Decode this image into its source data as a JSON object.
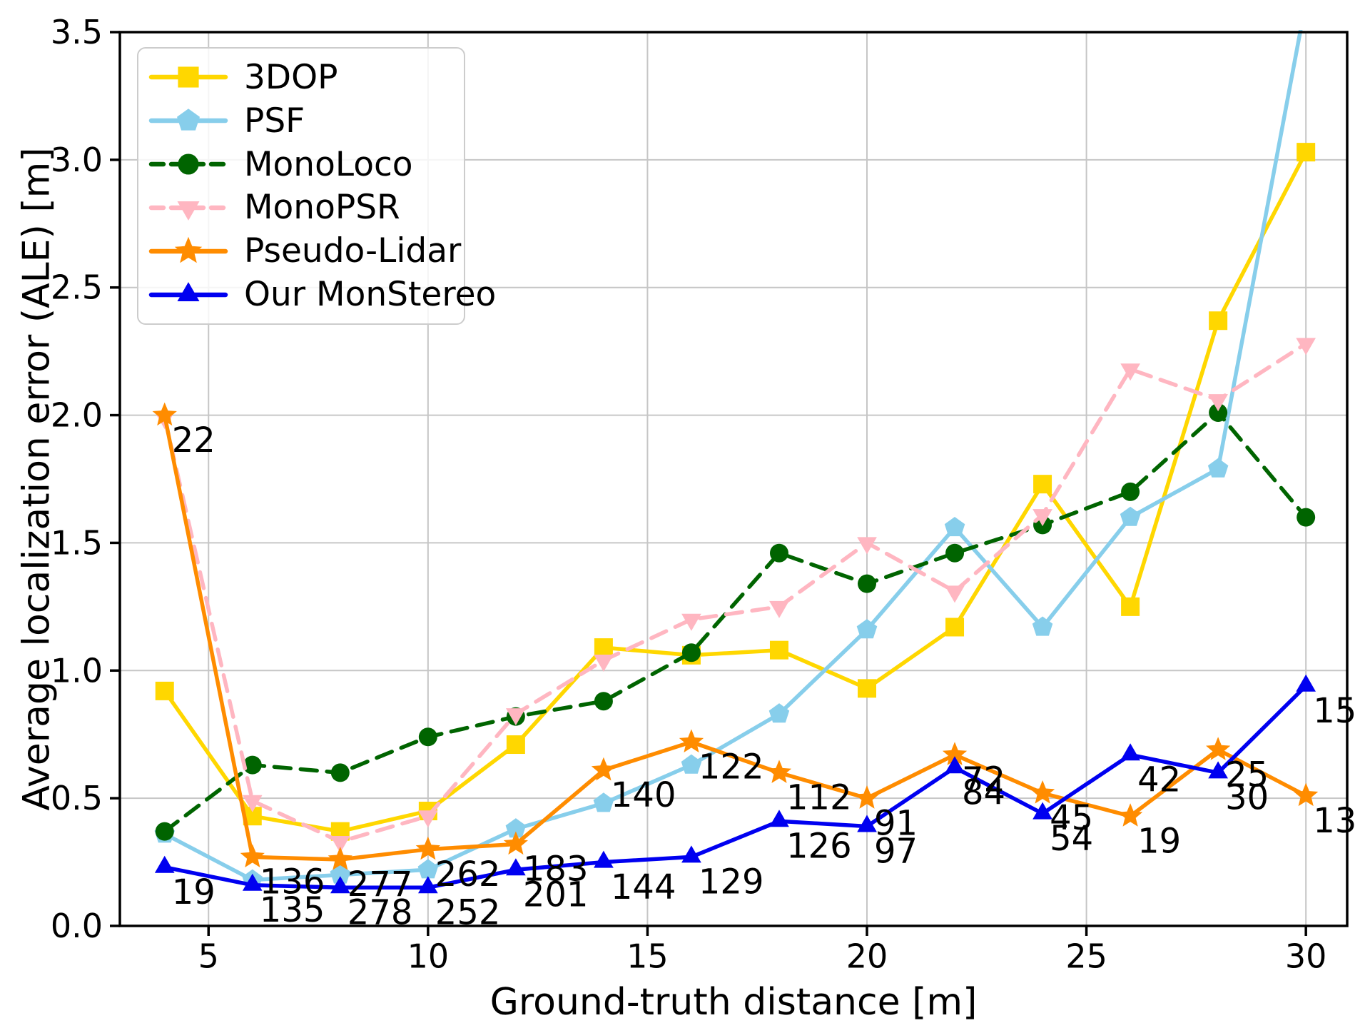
{
  "chart_data": {
    "type": "line",
    "title": "",
    "xlabel": "Ground-truth distance [m]",
    "ylabel": "Average localization error (ALE) [m]",
    "xlim": [
      2.98,
      30.94
    ],
    "ylim": [
      0,
      3.5
    ],
    "grid": true,
    "legend_position": "upper-left",
    "colors": {
      "grid": "#c6c6c6",
      "spine": "#000000",
      "text": "#000000",
      "legend_border": "#cccccc"
    },
    "xticks": [
      {
        "value": 5,
        "label": "5"
      },
      {
        "value": 10,
        "label": "10"
      },
      {
        "value": 15,
        "label": "15"
      },
      {
        "value": 20,
        "label": "20"
      },
      {
        "value": 25,
        "label": "25"
      },
      {
        "value": 30,
        "label": "30"
      }
    ],
    "yticks": [
      {
        "value": 0.0,
        "label": "0.0"
      },
      {
        "value": 0.5,
        "label": "0.5"
      },
      {
        "value": 1.0,
        "label": "1.0"
      },
      {
        "value": 1.5,
        "label": "1.5"
      },
      {
        "value": 2.0,
        "label": "2.0"
      },
      {
        "value": 2.5,
        "label": "2.5"
      },
      {
        "value": 3.0,
        "label": "3.0"
      },
      {
        "value": 3.5,
        "label": "3.5"
      }
    ],
    "x": [
      4,
      6,
      8,
      10,
      12,
      14,
      16,
      18,
      20,
      22,
      24,
      26,
      28,
      30
    ],
    "series": [
      {
        "name": "3DOP",
        "color": "#FFD700",
        "marker": "square",
        "dash": "solid",
        "values": [
          0.92,
          0.43,
          0.37,
          0.45,
          0.71,
          1.09,
          1.06,
          1.08,
          0.93,
          1.17,
          1.73,
          1.25,
          2.37,
          3.03
        ]
      },
      {
        "name": "PSF",
        "color": "#87CEEB",
        "marker": "pentagon",
        "dash": "solid",
        "values": [
          0.36,
          0.18,
          0.2,
          0.22,
          0.38,
          0.48,
          0.63,
          0.83,
          1.16,
          1.56,
          1.17,
          1.6,
          1.79,
          3.62
        ]
      },
      {
        "name": "MonoLoco",
        "color": "#006400",
        "marker": "circle",
        "dash": "dashed",
        "values": [
          0.37,
          0.63,
          0.6,
          0.74,
          0.82,
          0.88,
          1.07,
          1.46,
          1.34,
          1.46,
          1.57,
          1.7,
          2.01,
          1.6
        ]
      },
      {
        "name": "MonoPSR",
        "color": "#FFB6C1",
        "marker": "triangle-down",
        "dash": "dashed",
        "values": [
          1.99,
          0.49,
          0.33,
          0.43,
          0.83,
          1.04,
          1.2,
          1.25,
          1.5,
          1.31,
          1.61,
          2.18,
          2.06,
          2.28
        ]
      },
      {
        "name": "Pseudo-Lidar",
        "color": "#FF8C00",
        "marker": "star",
        "dash": "solid",
        "values": [
          2.0,
          0.27,
          0.26,
          0.3,
          0.32,
          0.61,
          0.72,
          0.6,
          0.5,
          0.67,
          0.52,
          0.43,
          0.69,
          0.51
        ]
      },
      {
        "name": "Our MonStereo",
        "color": "#0000F0",
        "marker": "triangle-up",
        "dash": "solid",
        "values": [
          0.23,
          0.16,
          0.15,
          0.15,
          0.22,
          0.25,
          0.27,
          0.41,
          0.39,
          0.62,
          0.44,
          0.67,
          0.6,
          0.94
        ]
      }
    ],
    "annotations": [
      {
        "text": "22",
        "x": 4,
        "y": 2.0
      },
      {
        "text": "19",
        "x": 4,
        "y": 0.23
      },
      {
        "text": "136",
        "x": 6,
        "y": 0.27
      },
      {
        "text": "135",
        "x": 6,
        "y": 0.16
      },
      {
        "text": "277",
        "x": 8,
        "y": 0.26
      },
      {
        "text": "278",
        "x": 8,
        "y": 0.15
      },
      {
        "text": "262",
        "x": 10,
        "y": 0.3
      },
      {
        "text": "252",
        "x": 10,
        "y": 0.15
      },
      {
        "text": "183",
        "x": 12,
        "y": 0.32
      },
      {
        "text": "201",
        "x": 12,
        "y": 0.22
      },
      {
        "text": "140",
        "x": 14,
        "y": 0.61
      },
      {
        "text": "144",
        "x": 14,
        "y": 0.25
      },
      {
        "text": "122",
        "x": 16,
        "y": 0.72
      },
      {
        "text": "129",
        "x": 16,
        "y": 0.27
      },
      {
        "text": "112",
        "x": 18,
        "y": 0.6
      },
      {
        "text": "126",
        "x": 18,
        "y": 0.41
      },
      {
        "text": "91",
        "x": 20,
        "y": 0.5
      },
      {
        "text": "97",
        "x": 20,
        "y": 0.39
      },
      {
        "text": "72",
        "x": 22,
        "y": 0.67
      },
      {
        "text": "84",
        "x": 22,
        "y": 0.62
      },
      {
        "text": "45",
        "x": 24,
        "y": 0.52
      },
      {
        "text": "54",
        "x": 24,
        "y": 0.44
      },
      {
        "text": "42",
        "x": 26,
        "y": 0.67
      },
      {
        "text": "19",
        "x": 26,
        "y": 0.43
      },
      {
        "text": "25",
        "x": 28,
        "y": 0.69
      },
      {
        "text": "30",
        "x": 28,
        "y": 0.6
      },
      {
        "text": "15",
        "x": 30,
        "y": 0.94
      },
      {
        "text": "13",
        "x": 30,
        "y": 0.51
      }
    ]
  }
}
